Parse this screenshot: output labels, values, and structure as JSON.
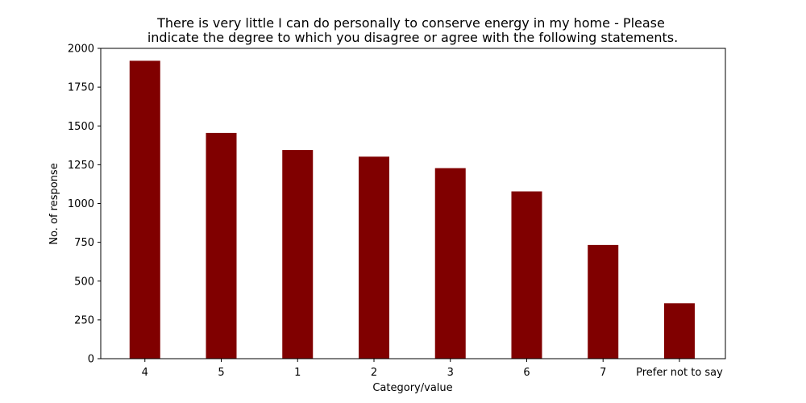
{
  "chart_data": {
    "type": "bar",
    "title_lines": [
      "There is very little I can do personally to conserve energy in my home - Please",
      "indicate the degree to which you disagree or agree with the following statements."
    ],
    "xlabel": "Category/value",
    "ylabel": "No. of response",
    "categories": [
      "4",
      "5",
      "1",
      "2",
      "3",
      "6",
      "7",
      "Prefer not to say"
    ],
    "values": [
      1920,
      1455,
      1345,
      1302,
      1228,
      1078,
      733,
      357
    ],
    "ylim": [
      0,
      2000
    ],
    "yticks": [
      0,
      250,
      500,
      750,
      1000,
      1250,
      1500,
      1750,
      2000
    ],
    "grid": false,
    "bar_color": "#800000"
  }
}
